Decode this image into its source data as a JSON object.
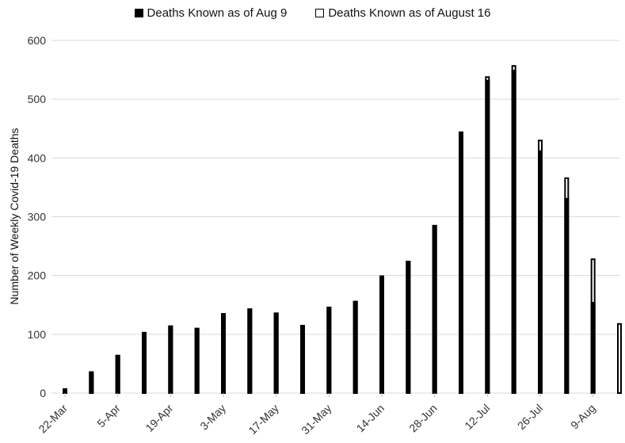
{
  "chart_data": {
    "type": "bar",
    "title": "",
    "xlabel": "",
    "ylabel": "Number of Weekly Covid-19 Deaths",
    "ylim": [
      0,
      600
    ],
    "yticks": [
      0,
      100,
      200,
      300,
      400,
      500,
      600
    ],
    "grid": true,
    "legend_position": "top",
    "categories": [
      "22-Mar",
      "29-Mar",
      "5-Apr",
      "12-Apr",
      "19-Apr",
      "26-Apr",
      "3-May",
      "10-May",
      "17-May",
      "24-May",
      "31-May",
      "7-Jun",
      "14-Jun",
      "21-Jun",
      "28-Jun",
      "5-Jul",
      "12-Jul",
      "19-Jul",
      "26-Jul",
      "2-Aug",
      "9-Aug",
      "16-Aug"
    ],
    "tick_labels": [
      "22-Mar",
      "5-Apr",
      "19-Apr",
      "3-May",
      "17-May",
      "31-May",
      "14-Jun",
      "28-Jun",
      "12-Jul",
      "26-Jul",
      "9-Aug"
    ],
    "series": [
      {
        "name": "Deaths Known as of Aug 9",
        "color": "#000000",
        "fill": "solid",
        "values": [
          8,
          37,
          65,
          104,
          115,
          111,
          136,
          144,
          137,
          116,
          147,
          157,
          200,
          225,
          286,
          445,
          533,
          550,
          413,
          332,
          155,
          0
        ]
      },
      {
        "name": "Deaths Known as of August 16",
        "color": "#000000",
        "fill": "outline",
        "values": [
          8,
          37,
          65,
          104,
          115,
          111,
          136,
          144,
          137,
          116,
          147,
          157,
          200,
          225,
          286,
          445,
          539,
          558,
          431,
          367,
          229,
          119
        ]
      }
    ]
  }
}
